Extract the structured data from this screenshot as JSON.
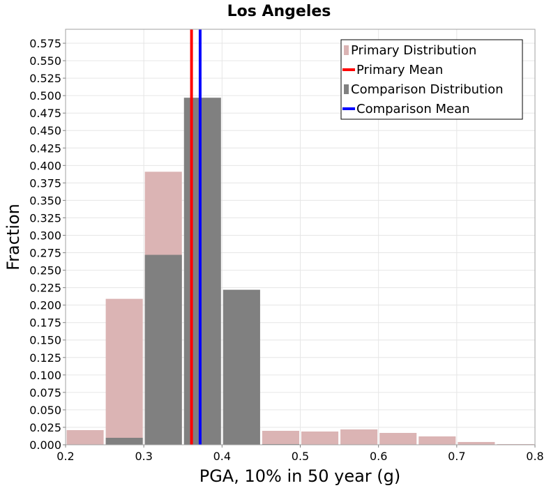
{
  "chart_data": {
    "type": "bar",
    "title": "Los Angeles",
    "xlabel": "PGA, 10% in 50 year (g)",
    "ylabel": "Fraction",
    "xlim": [
      0.2,
      0.8
    ],
    "ylim": [
      0,
      0.595
    ],
    "x_ticks": [
      0.2,
      0.3,
      0.4,
      0.5,
      0.6,
      0.7,
      0.8
    ],
    "x_tick_labels": [
      "0.2",
      "0.3",
      "0.4",
      "0.5",
      "0.6",
      "0.7",
      "0.8"
    ],
    "y_ticks": [
      0,
      0.025,
      0.05,
      0.075,
      0.1,
      0.125,
      0.15,
      0.175,
      0.2,
      0.225,
      0.25,
      0.275,
      0.3,
      0.325,
      0.35,
      0.375,
      0.4,
      0.425,
      0.45,
      0.475,
      0.5,
      0.525,
      0.55,
      0.575
    ],
    "y_tick_labels": [
      "0.000",
      "0.025",
      "0.050",
      "0.075",
      "0.100",
      "0.125",
      "0.150",
      "0.175",
      "0.200",
      "0.225",
      "0.250",
      "0.275",
      "0.300",
      "0.325",
      "0.350",
      "0.375",
      "0.400",
      "0.425",
      "0.450",
      "0.475",
      "0.500",
      "0.525",
      "0.550",
      "0.575"
    ],
    "bin_width": 0.05,
    "grid": true,
    "legend_position": "top-right",
    "series": [
      {
        "name": "Primary Distribution",
        "kind": "bar",
        "color": "#dbb4b4",
        "bins": [
          {
            "x": 0.225,
            "y": 0.021
          },
          {
            "x": 0.275,
            "y": 0.209
          },
          {
            "x": 0.325,
            "y": 0.391
          },
          {
            "x": 0.375,
            "y": 0.0
          },
          {
            "x": 0.425,
            "y": 0.0
          },
          {
            "x": 0.475,
            "y": 0.02
          },
          {
            "x": 0.525,
            "y": 0.019
          },
          {
            "x": 0.575,
            "y": 0.022
          },
          {
            "x": 0.625,
            "y": 0.017
          },
          {
            "x": 0.675,
            "y": 0.012
          },
          {
            "x": 0.725,
            "y": 0.004
          },
          {
            "x": 0.775,
            "y": 0.001
          }
        ]
      },
      {
        "name": "Comparison Distribution",
        "kind": "bar",
        "color": "#808080",
        "bins": [
          {
            "x": 0.275,
            "y": 0.01
          },
          {
            "x": 0.325,
            "y": 0.272
          },
          {
            "x": 0.375,
            "y": 0.497
          },
          {
            "x": 0.425,
            "y": 0.222
          },
          {
            "x": 0.475,
            "y": 0.001
          }
        ]
      },
      {
        "name": "Primary Mean",
        "kind": "vline",
        "color": "#ff0000",
        "x": 0.361
      },
      {
        "name": "Comparison Mean",
        "kind": "vline",
        "color": "#0000ff",
        "x": 0.372
      }
    ],
    "legend_order": [
      "Primary Distribution",
      "Primary Mean",
      "Comparison Distribution",
      "Comparison Mean"
    ]
  }
}
